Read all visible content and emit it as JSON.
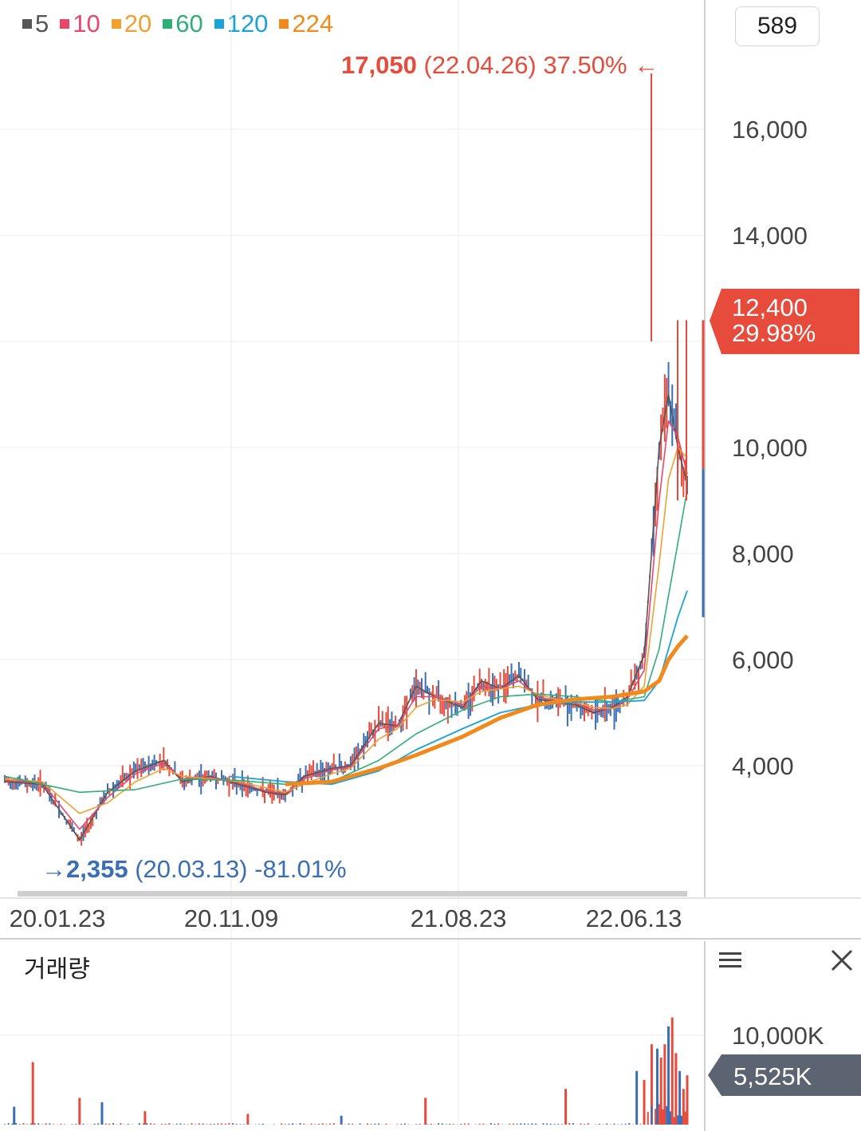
{
  "legend": [
    {
      "label": "5",
      "color": "#555555"
    },
    {
      "label": "10",
      "color": "#e8476a"
    },
    {
      "label": "20",
      "color": "#f0a030"
    },
    {
      "label": "60",
      "color": "#2fae78"
    },
    {
      "label": "120",
      "color": "#1aa3d8"
    },
    {
      "label": "224",
      "color": "#f08a1c"
    }
  ],
  "period_count": "589",
  "high_marker": {
    "price": "17,050",
    "date": "(22.04.26)",
    "pct": "37.50%",
    "arrow": "←"
  },
  "low_marker": {
    "arrow": "→",
    "price": "2,355",
    "date": "(20.03.13)",
    "pct": "-81.01%"
  },
  "current_price_tag": {
    "price": "12,400",
    "pct": "29.98%"
  },
  "volume_panel": {
    "title": "거래량",
    "current_tag": "5,525K"
  },
  "colors": {
    "up": "#e64b3b",
    "down": "#3a6fb5",
    "current_tag_bg": "#e64b3b",
    "volume_tag_bg": "#5b6470",
    "high_text": "#e64b3b",
    "low_text": "#3a6fb5"
  },
  "chart_data": [
    {
      "type": "line",
      "title": "",
      "x_ticks": [
        "20.01.23",
        "20.11.09",
        "21.08.23",
        "22.06.13"
      ],
      "y_ticks": [
        "4,000",
        "6,000",
        "8,000",
        "10,000",
        "14,000",
        "16,000"
      ],
      "ylim": [
        1600,
        18000
      ],
      "series": [
        {
          "name": "5",
          "points": [
            [
              0,
              3700
            ],
            [
              20,
              3650
            ],
            [
              40,
              2600
            ],
            [
              55,
              3500
            ],
            [
              70,
              3900
            ],
            [
              85,
              4100
            ],
            [
              95,
              3700
            ],
            [
              110,
              3800
            ],
            [
              125,
              3650
            ],
            [
              140,
              3500
            ],
            [
              150,
              3450
            ],
            [
              160,
              3800
            ],
            [
              175,
              3950
            ],
            [
              185,
              4000
            ],
            [
              200,
              4800
            ],
            [
              210,
              4750
            ],
            [
              220,
              5500
            ],
            [
              230,
              5300
            ],
            [
              245,
              5100
            ],
            [
              255,
              5600
            ],
            [
              265,
              5450
            ],
            [
              275,
              5700
            ],
            [
              285,
              5250
            ],
            [
              295,
              5200
            ],
            [
              305,
              5150
            ],
            [
              315,
              5000
            ],
            [
              325,
              5100
            ],
            [
              333,
              5300
            ],
            [
              342,
              6100
            ],
            [
              350,
              10000
            ],
            [
              355,
              11000
            ],
            [
              360,
              10000
            ],
            [
              365,
              9300
            ]
          ]
        },
        {
          "name": "10",
          "points": [
            [
              0,
              3720
            ],
            [
              20,
              3680
            ],
            [
              40,
              2800
            ],
            [
              55,
              3400
            ],
            [
              70,
              3850
            ],
            [
              85,
              4050
            ],
            [
              95,
              3750
            ],
            [
              110,
              3780
            ],
            [
              125,
              3680
            ],
            [
              140,
              3520
            ],
            [
              150,
              3480
            ],
            [
              160,
              3750
            ],
            [
              175,
              3920
            ],
            [
              185,
              3980
            ],
            [
              200,
              4700
            ],
            [
              210,
              4750
            ],
            [
              220,
              5300
            ],
            [
              230,
              5300
            ],
            [
              245,
              5150
            ],
            [
              255,
              5500
            ],
            [
              265,
              5450
            ],
            [
              275,
              5600
            ],
            [
              285,
              5300
            ],
            [
              295,
              5220
            ],
            [
              305,
              5180
            ],
            [
              315,
              5050
            ],
            [
              325,
              5080
            ],
            [
              333,
              5250
            ],
            [
              342,
              5800
            ],
            [
              350,
              9000
            ],
            [
              355,
              10500
            ],
            [
              360,
              10200
            ],
            [
              365,
              9500
            ]
          ]
        },
        {
          "name": "20",
          "points": [
            [
              0,
              3750
            ],
            [
              20,
              3700
            ],
            [
              40,
              3100
            ],
            [
              55,
              3300
            ],
            [
              70,
              3700
            ],
            [
              85,
              3950
            ],
            [
              95,
              3800
            ],
            [
              110,
              3750
            ],
            [
              125,
              3700
            ],
            [
              140,
              3580
            ],
            [
              150,
              3500
            ],
            [
              160,
              3650
            ],
            [
              175,
              3850
            ],
            [
              185,
              3950
            ],
            [
              200,
              4500
            ],
            [
              210,
              4700
            ],
            [
              220,
              5100
            ],
            [
              230,
              5250
            ],
            [
              245,
              5200
            ],
            [
              255,
              5400
            ],
            [
              265,
              5450
            ],
            [
              275,
              5500
            ],
            [
              285,
              5350
            ],
            [
              295,
              5250
            ],
            [
              305,
              5200
            ],
            [
              315,
              5100
            ],
            [
              325,
              5080
            ],
            [
              333,
              5150
            ],
            [
              342,
              5500
            ],
            [
              350,
              7800
            ],
            [
              355,
              9400
            ],
            [
              360,
              10000
            ],
            [
              365,
              9800
            ]
          ]
        },
        {
          "name": "60",
          "points": [
            [
              0,
              3800
            ],
            [
              40,
              3500
            ],
            [
              70,
              3550
            ],
            [
              95,
              3750
            ],
            [
              125,
              3720
            ],
            [
              150,
              3650
            ],
            [
              175,
              3700
            ],
            [
              200,
              4100
            ],
            [
              220,
              4600
            ],
            [
              245,
              5050
            ],
            [
              265,
              5300
            ],
            [
              285,
              5350
            ],
            [
              305,
              5300
            ],
            [
              325,
              5200
            ],
            [
              342,
              5300
            ],
            [
              350,
              6200
            ],
            [
              355,
              7200
            ],
            [
              360,
              8200
            ],
            [
              365,
              9200
            ]
          ]
        },
        {
          "name": "120",
          "points": [
            [
              120,
              3800
            ],
            [
              150,
              3700
            ],
            [
              175,
              3650
            ],
            [
              200,
              3900
            ],
            [
              220,
              4300
            ],
            [
              245,
              4700
            ],
            [
              265,
              5000
            ],
            [
              285,
              5150
            ],
            [
              305,
              5200
            ],
            [
              325,
              5200
            ],
            [
              342,
              5230
            ],
            [
              350,
              5600
            ],
            [
              355,
              6200
            ],
            [
              360,
              6800
            ],
            [
              365,
              7300
            ]
          ]
        },
        {
          "name": "224",
          "points": [
            [
              150,
              3650
            ],
            [
              175,
              3700
            ],
            [
              200,
              3950
            ],
            [
              220,
              4200
            ],
            [
              245,
              4550
            ],
            [
              265,
              4900
            ],
            [
              285,
              5150
            ],
            [
              305,
              5250
            ],
            [
              325,
              5300
            ],
            [
              342,
              5400
            ],
            [
              350,
              5600
            ],
            [
              355,
              6000
            ],
            [
              360,
              6250
            ],
            [
              365,
              6450
            ]
          ]
        }
      ]
    },
    {
      "type": "bar",
      "title": "거래량",
      "y_ticks": [
        "10,000K"
      ],
      "ylim": [
        0,
        14000
      ],
      "unit": "K",
      "bars": [
        [
          5,
          2000
        ],
        [
          15,
          7000
        ],
        [
          40,
          3000
        ],
        [
          52,
          2500
        ],
        [
          75,
          1500
        ],
        [
          130,
          1200
        ],
        [
          180,
          1000
        ],
        [
          225,
          3000
        ],
        [
          300,
          4000
        ],
        [
          338,
          6000
        ],
        [
          342,
          5000
        ],
        [
          346,
          9000
        ],
        [
          349,
          8500
        ],
        [
          351,
          7500
        ],
        [
          353,
          9000
        ],
        [
          355,
          11000
        ],
        [
          357,
          12000
        ],
        [
          359,
          8000
        ],
        [
          361,
          6000
        ],
        [
          363,
          4000
        ],
        [
          365,
          5525
        ]
      ]
    }
  ]
}
